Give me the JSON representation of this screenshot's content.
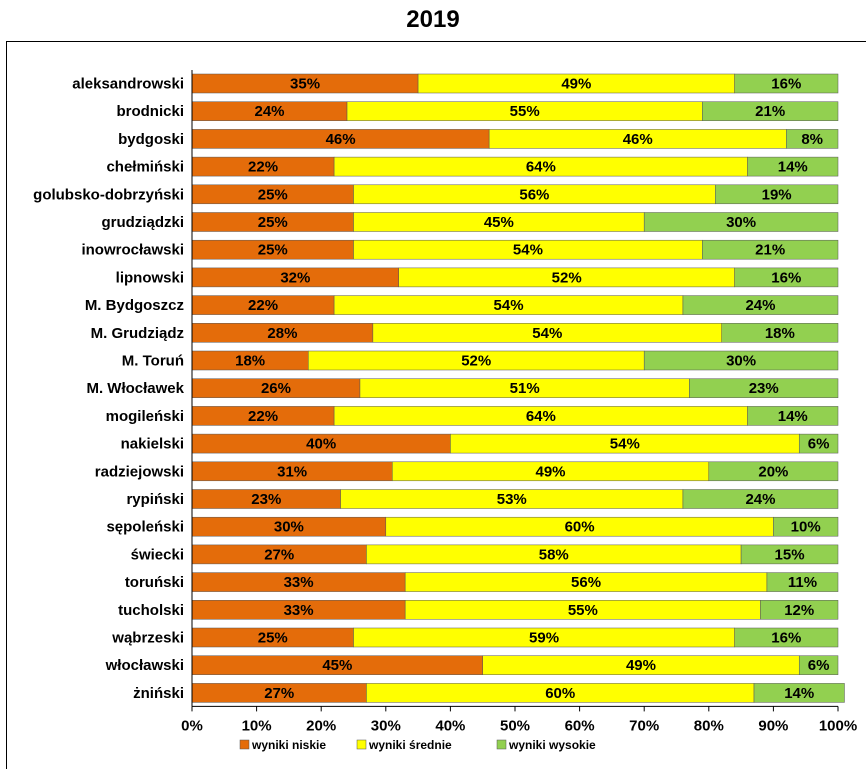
{
  "chart_data": {
    "type": "bar",
    "orientation": "horizontal",
    "stacked": true,
    "title": "2019",
    "categories": [
      "aleksandrowski",
      "brodnicki",
      "bydgoski",
      "chełmiński",
      "golubsko-dobrzyński",
      "grudziądzki",
      "inowrocławski",
      "lipnowski",
      "M. Bydgoszcz",
      "M. Grudziądz",
      "M. Toruń",
      "M. Włocławek",
      "mogileński",
      "nakielski",
      "radziejowski",
      "rypiński",
      "sępoleński",
      "świecki",
      "toruński",
      "tucholski",
      "wąbrzeski",
      "włocławski",
      "żniński"
    ],
    "series": [
      {
        "name": "wyniki niskie",
        "color": "#E46C0A",
        "values": [
          35,
          24,
          46,
          22,
          25,
          25,
          25,
          32,
          22,
          28,
          18,
          26,
          22,
          40,
          31,
          23,
          30,
          27,
          33,
          33,
          25,
          45,
          27
        ]
      },
      {
        "name": "wyniki średnie",
        "color": "#FFFF00",
        "values": [
          49,
          55,
          46,
          64,
          56,
          45,
          54,
          52,
          54,
          54,
          52,
          51,
          64,
          54,
          49,
          53,
          60,
          58,
          56,
          55,
          59,
          49,
          60
        ]
      },
      {
        "name": "wyniki wysokie",
        "color": "#92D050",
        "values": [
          16,
          21,
          8,
          14,
          19,
          30,
          21,
          16,
          24,
          18,
          30,
          23,
          14,
          6,
          20,
          24,
          10,
          15,
          11,
          12,
          16,
          6,
          14
        ]
      }
    ],
    "xlim": [
      0,
      100
    ],
    "x_ticks": [
      "0%",
      "10%",
      "20%",
      "30%",
      "40%",
      "50%",
      "60%",
      "70%",
      "80%",
      "90%",
      "100%"
    ],
    "grid": false,
    "legend_position": "bottom"
  }
}
